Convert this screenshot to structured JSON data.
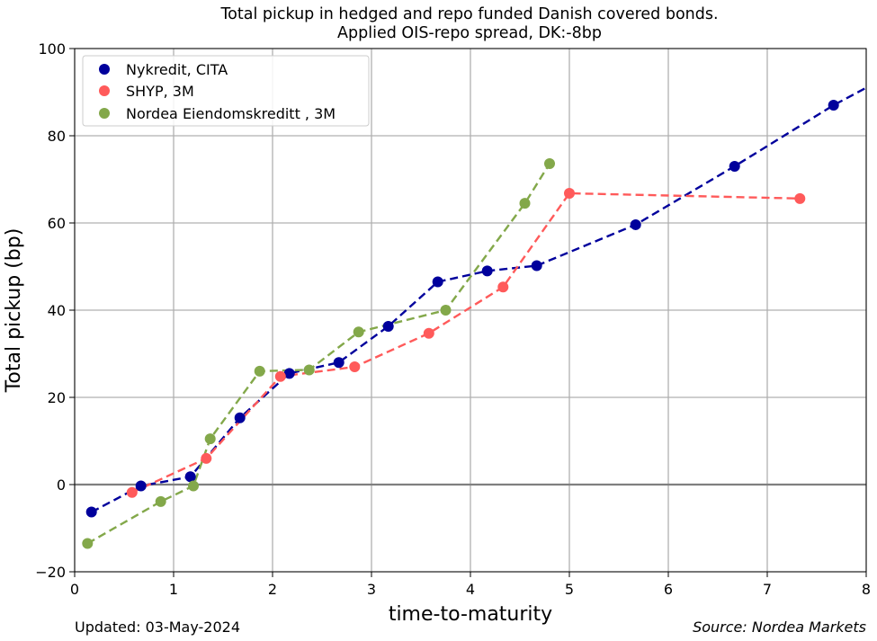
{
  "chart_data": {
    "type": "scatter",
    "title": "Total pickup in hedged and repo funded Danish covered bonds.",
    "subtitle": "Applied OIS-repo spread, DK:-8bp",
    "xlabel": "time-to-maturity",
    "ylabel": "Total pickup (bp)",
    "xlim": [
      0,
      8
    ],
    "ylim": [
      -20,
      100
    ],
    "xticks": [
      "0",
      "1",
      "2",
      "3",
      "4",
      "5",
      "6",
      "7",
      "8"
    ],
    "yticks": [
      "−20",
      "0",
      "20",
      "40",
      "60",
      "80",
      "100"
    ],
    "grid": true,
    "legend_position": "top-left",
    "series": [
      {
        "name": "Nykredit, CITA",
        "color": "#00009c",
        "x": [
          0.17,
          0.67,
          1.17,
          1.67,
          2.17,
          2.67,
          3.17,
          3.67,
          4.17,
          4.67,
          5.67,
          6.67,
          7.67
        ],
        "y": [
          -6.3,
          -0.3,
          1.8,
          15.3,
          25.5,
          28,
          36.3,
          46.5,
          49,
          50.2,
          59.6,
          73,
          87
        ],
        "trend": {
          "x": [
            0.17,
            0.67,
            1.17,
            1.67,
            2.17,
            2.67,
            3.17,
            3.67,
            4.17,
            4.67,
            5.67,
            6.67,
            7.67,
            8.0
          ],
          "y": [
            -6.3,
            -0.3,
            1.8,
            15.3,
            25.5,
            28,
            36.3,
            46.5,
            49,
            50.2,
            59.6,
            73,
            87,
            91
          ]
        }
      },
      {
        "name": "SHYP, 3M",
        "color": "#ff5a5a",
        "x": [
          0.58,
          1.33,
          2.08,
          2.83,
          3.58,
          4.33,
          5.0,
          7.33
        ],
        "y": [
          -1.8,
          6,
          24.8,
          27,
          34.7,
          45.3,
          66.8,
          65.6
        ],
        "trend": {
          "x": [
            0.58,
            1.33,
            2.08,
            2.83,
            3.58,
            4.33,
            5.0,
            7.33
          ],
          "y": [
            -1.8,
            6,
            24.8,
            27,
            34.7,
            45.3,
            66.8,
            65.6
          ]
        }
      },
      {
        "name": "Nordea Eiendomskreditt , 3M",
        "color": "#83a84a",
        "x": [
          0.13,
          0.87,
          1.2,
          1.37,
          1.87,
          2.37,
          2.87,
          3.75,
          4.55,
          4.8
        ],
        "y": [
          -13.5,
          -3.9,
          -0.3,
          10.5,
          26,
          26.3,
          35,
          40,
          64.5,
          73.6
        ],
        "trend": {
          "x": [
            0.13,
            0.87,
            1.2,
            1.37,
            1.87,
            2.37,
            2.87,
            3.75,
            4.55,
            4.8
          ],
          "y": [
            -13.5,
            -3.9,
            -0.3,
            10.5,
            26,
            26.3,
            35,
            40,
            64.5,
            73.6
          ]
        }
      }
    ],
    "footer_left": "Updated: 03-May-2024",
    "footer_right": "Source: Nordea Markets"
  }
}
